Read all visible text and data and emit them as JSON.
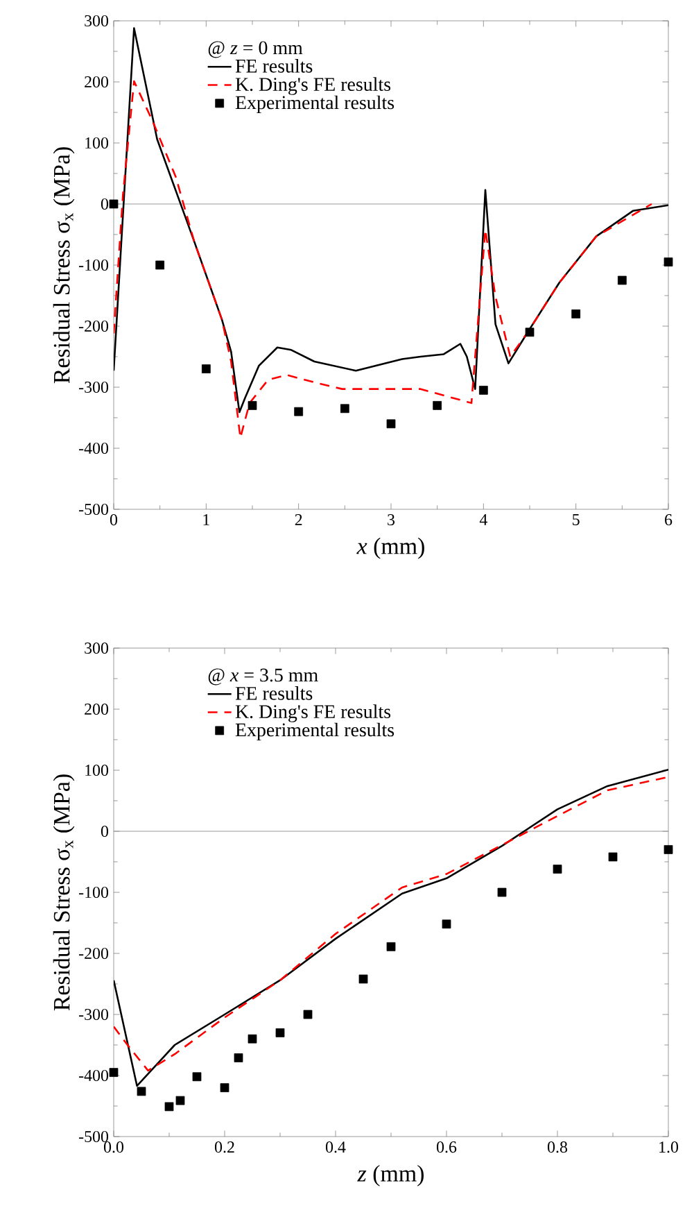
{
  "chart_data": [
    {
      "type": "line",
      "xlabel": "*x* (mm)",
      "ylabel": "Residual Stress σ$_{x}$ (MPa)",
      "legend_title": "@ *z* = 0 mm",
      "legend": "top left",
      "xlim": [
        0,
        6
      ],
      "xticks": [
        0,
        1,
        2,
        3,
        4,
        5,
        6
      ],
      "ylim": [
        -500,
        300
      ],
      "yticks": [
        -500,
        -400,
        -300,
        -200,
        -100,
        0,
        100,
        200,
        300
      ],
      "ref_lines": [
        {
          "axis": "y",
          "value": 0,
          "color": "#999999"
        }
      ],
      "series": [
        {
          "name": "FE results",
          "color": "#000000",
          "line_style": "solid",
          "x": [
            0,
            0.22,
            0.47,
            0.87,
            1.17,
            1.27,
            1.36,
            1.42,
            1.57,
            1.77,
            1.92,
            2.17,
            2.62,
            3.12,
            3.32,
            3.57,
            3.75,
            3.82,
            3.91,
            4.02,
            4.13,
            4.27,
            4.47,
            4.82,
            5.22,
            5.62,
            6.0
          ],
          "values": [
            -273,
            288,
            106,
            -61,
            -189,
            -242,
            -341,
            -318,
            -265,
            -235,
            -239,
            -258,
            -273,
            -254,
            -250,
            -246,
            -229,
            -250,
            -303,
            23,
            -197,
            -261,
            -212,
            -129,
            -53,
            -11,
            -2
          ]
        },
        {
          "name": "K. Ding's FE results",
          "color": "#ff0000",
          "line_style": "dashed",
          "x": [
            0,
            0.1,
            0.22,
            0.42,
            0.67,
            0.87,
            1.17,
            1.27,
            1.37,
            1.47,
            1.67,
            1.87,
            2.17,
            2.47,
            3.12,
            3.32,
            3.87,
            4.02,
            4.13,
            4.29,
            4.47,
            4.82,
            5.22,
            5.82
          ],
          "values": [
            -212,
            15,
            201,
            136,
            45,
            -61,
            -189,
            -258,
            -383,
            -326,
            -288,
            -280,
            -292,
            -303,
            -303,
            -303,
            -326,
            -42,
            -152,
            -250,
            -212,
            -129,
            -53,
            0
          ]
        },
        {
          "name": "Experimental results",
          "type": "scatter",
          "marker": "square",
          "color": "#000000",
          "x": [
            0,
            0.5,
            1,
            1.5,
            2,
            2.5,
            3,
            3.5,
            4,
            4.5,
            5,
            5.5,
            6
          ],
          "values": [
            0,
            -100,
            -270,
            -330,
            -340,
            -335,
            -360,
            -330,
            -305,
            -210,
            -180,
            -125,
            -95
          ]
        }
      ]
    },
    {
      "type": "line",
      "xlabel": "*z* (mm)",
      "ylabel": "Residual Stress σ$_{x}$ (MPa)",
      "legend_title": "@ *x* = 3.5 mm",
      "legend": "top left",
      "xlim": [
        0,
        1
      ],
      "xticks": [
        {
          "value": 0,
          "label": "0.0"
        },
        0.2,
        0.4,
        0.6,
        0.8,
        {
          "value": 1,
          "label": "1.0"
        }
      ],
      "ylim": [
        -500,
        300
      ],
      "yticks": [
        -500,
        -400,
        -300,
        -200,
        -100,
        0,
        100,
        200,
        300
      ],
      "ref_lines": [
        {
          "axis": "y",
          "value": 0,
          "color": "#999999"
        }
      ],
      "series": [
        {
          "name": "FE results",
          "color": "#000000",
          "line_style": "solid",
          "x": [
            0,
            0.042,
            0.11,
            0.2,
            0.3,
            0.4,
            0.52,
            0.6,
            0.7,
            0.8,
            0.89,
            1.0
          ],
          "values": [
            -244,
            -417,
            -350,
            -300,
            -244,
            -176,
            -102,
            -77,
            -24,
            36,
            74,
            101
          ]
        },
        {
          "name": "K. Ding's FE results",
          "color": "#ff0000",
          "line_style": "dashed",
          "x": [
            0,
            0.025,
            0.062,
            0.11,
            0.2,
            0.3,
            0.4,
            0.52,
            0.6,
            0.8,
            0.89,
            1.0
          ],
          "values": [
            -320,
            -350,
            -392,
            -365,
            -305,
            -244,
            -168,
            -92,
            -70,
            25,
            67,
            89
          ]
        },
        {
          "name": "Experimental results",
          "type": "scatter",
          "marker": "square",
          "color": "#000000",
          "x": [
            0,
            0.05,
            0.1,
            0.12,
            0.15,
            0.2,
            0.225,
            0.25,
            0.3,
            0.35,
            0.45,
            0.5,
            0.6,
            0.7,
            0.8,
            0.9,
            1.0
          ],
          "values": [
            -395,
            -426,
            -451,
            -441,
            -402,
            -420,
            -371,
            -340,
            -330,
            -300,
            -242,
            -189,
            -152,
            -100,
            -62,
            -42,
            -30
          ]
        }
      ]
    }
  ]
}
